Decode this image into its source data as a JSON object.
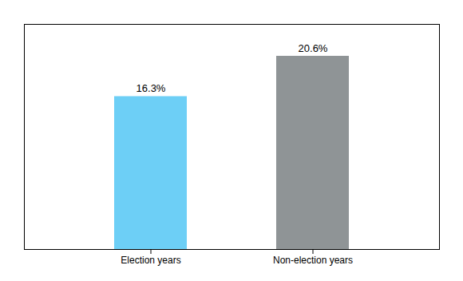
{
  "chart_data": {
    "type": "bar",
    "categories": [
      "Election years",
      "Non-election years"
    ],
    "values": [
      16.3,
      20.6
    ],
    "value_labels": [
      "16.3%",
      "20.6%"
    ],
    "data_labels": true,
    "colors": [
      "#6dcff6",
      "#8f9496"
    ],
    "ylim": [
      0,
      24
    ],
    "yticks": [],
    "tick_labels": "x",
    "grid": false
  }
}
